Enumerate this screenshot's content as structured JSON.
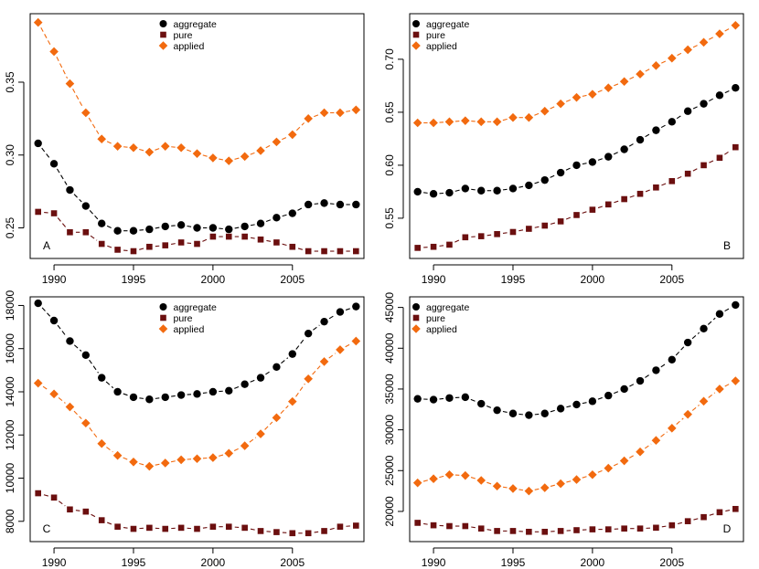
{
  "colors": {
    "aggregate": "#000000",
    "pure": "#6b0f0f",
    "applied": "#f26a0f"
  },
  "legend_labels": [
    "aggregate",
    "pure",
    "applied"
  ],
  "chart_data": [
    {
      "type": "line",
      "panel_label": "A",
      "x": [
        1989,
        1990,
        1991,
        1992,
        1993,
        1994,
        1995,
        1996,
        1997,
        1998,
        1999,
        2000,
        2001,
        2002,
        2003,
        2004,
        2005,
        2006,
        2007,
        2008,
        2009
      ],
      "xticks": [
        1990,
        1995,
        2000,
        2005
      ],
      "xlim": [
        1988.5,
        2009.5
      ],
      "yticks": [
        0.25,
        0.3,
        0.35
      ],
      "ytick_labels": [
        "0.25",
        "0.30",
        "0.35"
      ],
      "ylim": [
        0.229,
        0.397
      ],
      "legend": "top-center",
      "series": [
        {
          "name": "aggregate",
          "marker": "circle",
          "values": [
            0.308,
            0.294,
            0.276,
            0.265,
            0.253,
            0.248,
            0.248,
            0.249,
            0.251,
            0.252,
            0.25,
            0.25,
            0.249,
            0.251,
            0.253,
            0.257,
            0.26,
            0.266,
            0.267,
            0.266,
            0.266
          ]
        },
        {
          "name": "pure",
          "marker": "square",
          "values": [
            0.261,
            0.26,
            0.247,
            0.247,
            0.239,
            0.235,
            0.234,
            0.237,
            0.238,
            0.24,
            0.239,
            0.244,
            0.244,
            0.244,
            0.242,
            0.24,
            0.237,
            0.234,
            0.234,
            0.234,
            0.234
          ]
        },
        {
          "name": "applied",
          "marker": "diamond",
          "values": [
            0.391,
            0.371,
            0.349,
            0.329,
            0.311,
            0.306,
            0.305,
            0.302,
            0.306,
            0.305,
            0.301,
            0.298,
            0.296,
            0.299,
            0.303,
            0.309,
            0.314,
            0.325,
            0.329,
            0.329,
            0.331
          ]
        }
      ]
    },
    {
      "type": "line",
      "panel_label": "B",
      "x": [
        1989,
        1990,
        1991,
        1992,
        1993,
        1994,
        1995,
        1996,
        1997,
        1998,
        1999,
        2000,
        2001,
        2002,
        2003,
        2004,
        2005,
        2006,
        2007,
        2008,
        2009
      ],
      "xticks": [
        1990,
        1995,
        2000,
        2005
      ],
      "xlim": [
        1988.5,
        2009.5
      ],
      "yticks": [
        0.55,
        0.6,
        0.65,
        0.7
      ],
      "ytick_labels": [
        "0.55",
        "0.60",
        "0.65",
        "0.70"
      ],
      "ylim": [
        0.512,
        0.743
      ],
      "legend": "top-left",
      "series": [
        {
          "name": "aggregate",
          "marker": "circle",
          "values": [
            0.575,
            0.573,
            0.574,
            0.578,
            0.576,
            0.576,
            0.578,
            0.581,
            0.586,
            0.593,
            0.6,
            0.603,
            0.608,
            0.615,
            0.624,
            0.633,
            0.641,
            0.651,
            0.658,
            0.666,
            0.673
          ]
        },
        {
          "name": "pure",
          "marker": "square",
          "values": [
            0.522,
            0.523,
            0.525,
            0.532,
            0.533,
            0.535,
            0.537,
            0.54,
            0.543,
            0.547,
            0.553,
            0.558,
            0.563,
            0.568,
            0.573,
            0.579,
            0.585,
            0.592,
            0.6,
            0.607,
            0.617
          ]
        },
        {
          "name": "applied",
          "marker": "diamond",
          "values": [
            0.64,
            0.64,
            0.641,
            0.642,
            0.641,
            0.641,
            0.645,
            0.645,
            0.651,
            0.658,
            0.664,
            0.667,
            0.673,
            0.679,
            0.686,
            0.694,
            0.701,
            0.709,
            0.716,
            0.724,
            0.732
          ]
        }
      ]
    },
    {
      "type": "line",
      "panel_label": "C",
      "x": [
        1989,
        1990,
        1991,
        1992,
        1993,
        1994,
        1995,
        1996,
        1997,
        1998,
        1999,
        2000,
        2001,
        2002,
        2003,
        2004,
        2005,
        2006,
        2007,
        2008,
        2009
      ],
      "xticks": [
        1990,
        1995,
        2000,
        2005
      ],
      "xlim": [
        1988.5,
        2009.5
      ],
      "yticks": [
        8000,
        10000,
        12000,
        14000,
        16000,
        18000
      ],
      "ytick_labels": [
        "8000",
        "10000",
        "12000",
        "14000",
        "16000",
        "18000"
      ],
      "ylim": [
        7060,
        18400
      ],
      "legend": "top-center",
      "series": [
        {
          "name": "aggregate",
          "marker": "circle",
          "values": [
            18100,
            17300,
            16350,
            15700,
            14650,
            14000,
            13750,
            13650,
            13750,
            13850,
            13900,
            14000,
            14050,
            14350,
            14650,
            15150,
            15750,
            16700,
            17250,
            17700,
            17950
          ]
        },
        {
          "name": "pure",
          "marker": "square",
          "values": [
            9300,
            9100,
            8550,
            8450,
            8050,
            7750,
            7650,
            7700,
            7650,
            7700,
            7650,
            7750,
            7750,
            7700,
            7550,
            7500,
            7450,
            7450,
            7550,
            7750,
            7800
          ]
        },
        {
          "name": "applied",
          "marker": "diamond",
          "values": [
            14400,
            13900,
            13300,
            12550,
            11600,
            11050,
            10750,
            10550,
            10700,
            10850,
            10900,
            10950,
            11150,
            11500,
            12050,
            12800,
            13550,
            14600,
            15400,
            15950,
            16350
          ]
        }
      ]
    },
    {
      "type": "line",
      "panel_label": "D",
      "x": [
        1989,
        1990,
        1991,
        1992,
        1993,
        1994,
        1995,
        1996,
        1997,
        1998,
        1999,
        2000,
        2001,
        2002,
        2003,
        2004,
        2005,
        2006,
        2007,
        2008,
        2009
      ],
      "xticks": [
        1990,
        1995,
        2000,
        2005
      ],
      "xlim": [
        1988.5,
        2009.5
      ],
      "yticks": [
        20000,
        25000,
        30000,
        35000,
        40000,
        45000
      ],
      "ytick_labels": [
        "20000",
        "25000",
        "30000",
        "35000",
        "40000",
        "45000"
      ],
      "ylim": [
        16300,
        46300
      ],
      "legend": "top-left",
      "series": [
        {
          "name": "aggregate",
          "marker": "circle",
          "values": [
            33800,
            33700,
            33900,
            34000,
            33200,
            32400,
            32000,
            31800,
            32000,
            32600,
            33100,
            33500,
            34200,
            35000,
            36000,
            37300,
            38600,
            40700,
            42400,
            44200,
            45300
          ]
        },
        {
          "name": "pure",
          "marker": "square",
          "values": [
            18600,
            18300,
            18200,
            18200,
            17900,
            17600,
            17600,
            17500,
            17500,
            17600,
            17700,
            17800,
            17800,
            17900,
            17900,
            18000,
            18300,
            18800,
            19300,
            19900,
            20300
          ]
        },
        {
          "name": "applied",
          "marker": "diamond",
          "values": [
            23500,
            24000,
            24500,
            24400,
            23800,
            23100,
            22800,
            22500,
            22900,
            23400,
            23900,
            24500,
            25300,
            26200,
            27300,
            28700,
            30200,
            31900,
            33500,
            35000,
            36000
          ]
        }
      ]
    }
  ]
}
